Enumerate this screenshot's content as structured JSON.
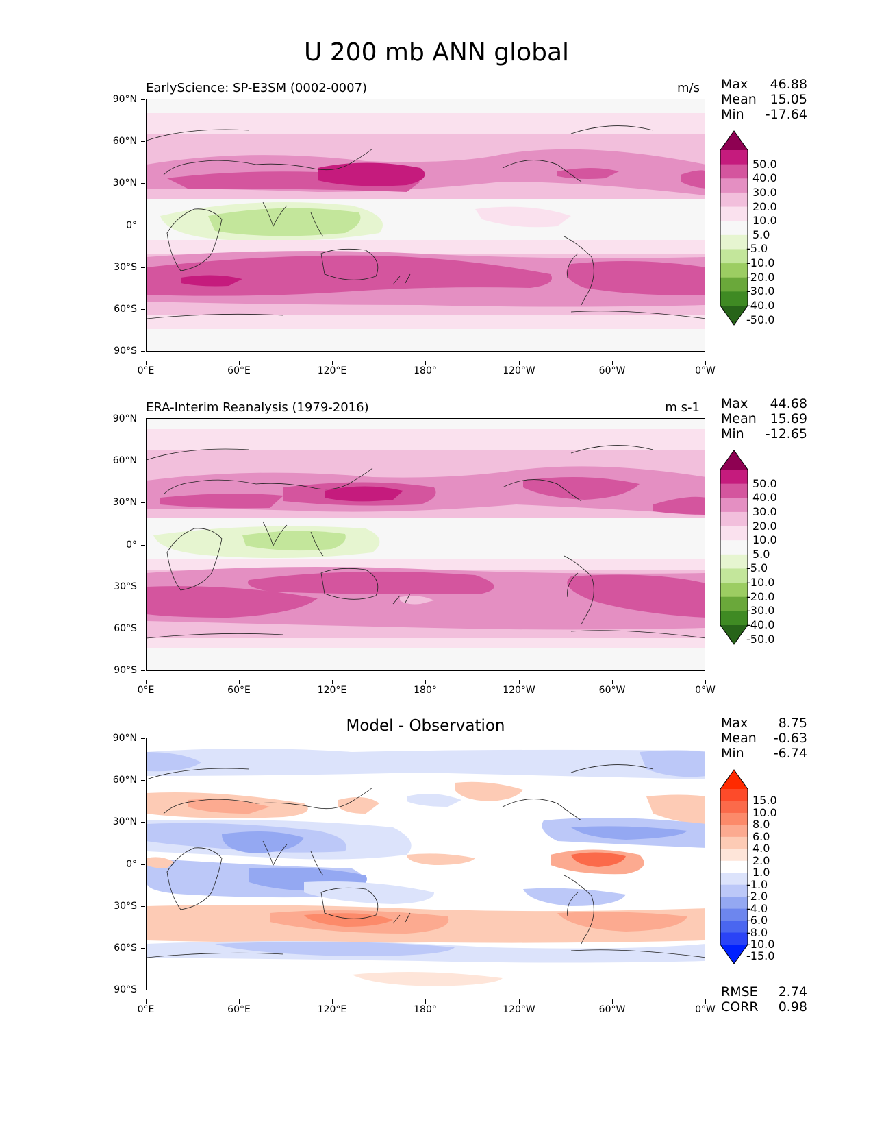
{
  "title": "U 200 mb ANN global",
  "panels": [
    {
      "id": "test",
      "title_left": "EarlyScience: SP-E3SM (0002-0007)",
      "title_right": "m/s",
      "stats": {
        "max_label": "Max",
        "max": "46.88",
        "mean_label": "Mean",
        "mean": "15.05",
        "min_label": "Min",
        "min": "-17.64"
      },
      "colorbar_labels": [
        "50.0",
        "40.0",
        "30.0",
        "20.0",
        "10.0",
        "5.0",
        "-5.0",
        "-10.0",
        "-20.0",
        "-30.0",
        "-40.0",
        "-50.0"
      ],
      "colorbar_colors": [
        "#8e0152",
        "#c51b7d",
        "#d4559e",
        "#e48fc2",
        "#f2bfdc",
        "#fae1ee",
        "#f7f7f7",
        "#e6f5d0",
        "#c3e69b",
        "#9ccd62",
        "#6aa83a",
        "#3f8a23",
        "#276419"
      ]
    },
    {
      "id": "reference",
      "title_left": "ERA-Interim Reanalysis (1979-2016)",
      "title_right": "m s-1",
      "stats": {
        "max_label": "Max",
        "max": "44.68",
        "mean_label": "Mean",
        "mean": "15.69",
        "min_label": "Min",
        "min": "-12.65"
      },
      "colorbar_labels": [
        "50.0",
        "40.0",
        "30.0",
        "20.0",
        "10.0",
        "5.0",
        "-5.0",
        "-10.0",
        "-20.0",
        "-30.0",
        "-40.0",
        "-50.0"
      ],
      "colorbar_colors": [
        "#8e0152",
        "#c51b7d",
        "#d4559e",
        "#e48fc2",
        "#f2bfdc",
        "#fae1ee",
        "#f7f7f7",
        "#e6f5d0",
        "#c3e69b",
        "#9ccd62",
        "#6aa83a",
        "#3f8a23",
        "#276419"
      ]
    },
    {
      "id": "diff",
      "title_center": "Model - Observation",
      "stats": {
        "max_label": "Max",
        "max": "8.75",
        "mean_label": "Mean",
        "mean": "-0.63",
        "min_label": "Min",
        "min": "-6.74"
      },
      "colorbar_labels": [
        "15.0",
        "10.0",
        "8.0",
        "6.0",
        "4.0",
        "2.0",
        "1.0",
        "-1.0",
        "-2.0",
        "-4.0",
        "-6.0",
        "-8.0",
        "-10.0",
        "-15.0"
      ],
      "colorbar_colors": [
        "#ff2a00",
        "#fd4b2a",
        "#fb6a4a",
        "#fc8a6a",
        "#fcaa90",
        "#fdcbb5",
        "#fee5d9",
        "#ffffff",
        "#dce3fb",
        "#bcc8f8",
        "#94a8f2",
        "#6d86ee",
        "#4a66f0",
        "#2a43f6",
        "#0020ff"
      ],
      "metrics": {
        "rmse_label": "RMSE",
        "rmse": "2.74",
        "corr_label": "CORR",
        "corr": "0.98"
      }
    }
  ],
  "axes": {
    "y_ticks": [
      "90°N",
      "60°N",
      "30°N",
      "0°",
      "30°S",
      "60°S",
      "90°S"
    ],
    "x_ticks": [
      "0°E",
      "60°E",
      "120°E",
      "180°",
      "120°W",
      "60°W",
      "0°W"
    ]
  }
}
